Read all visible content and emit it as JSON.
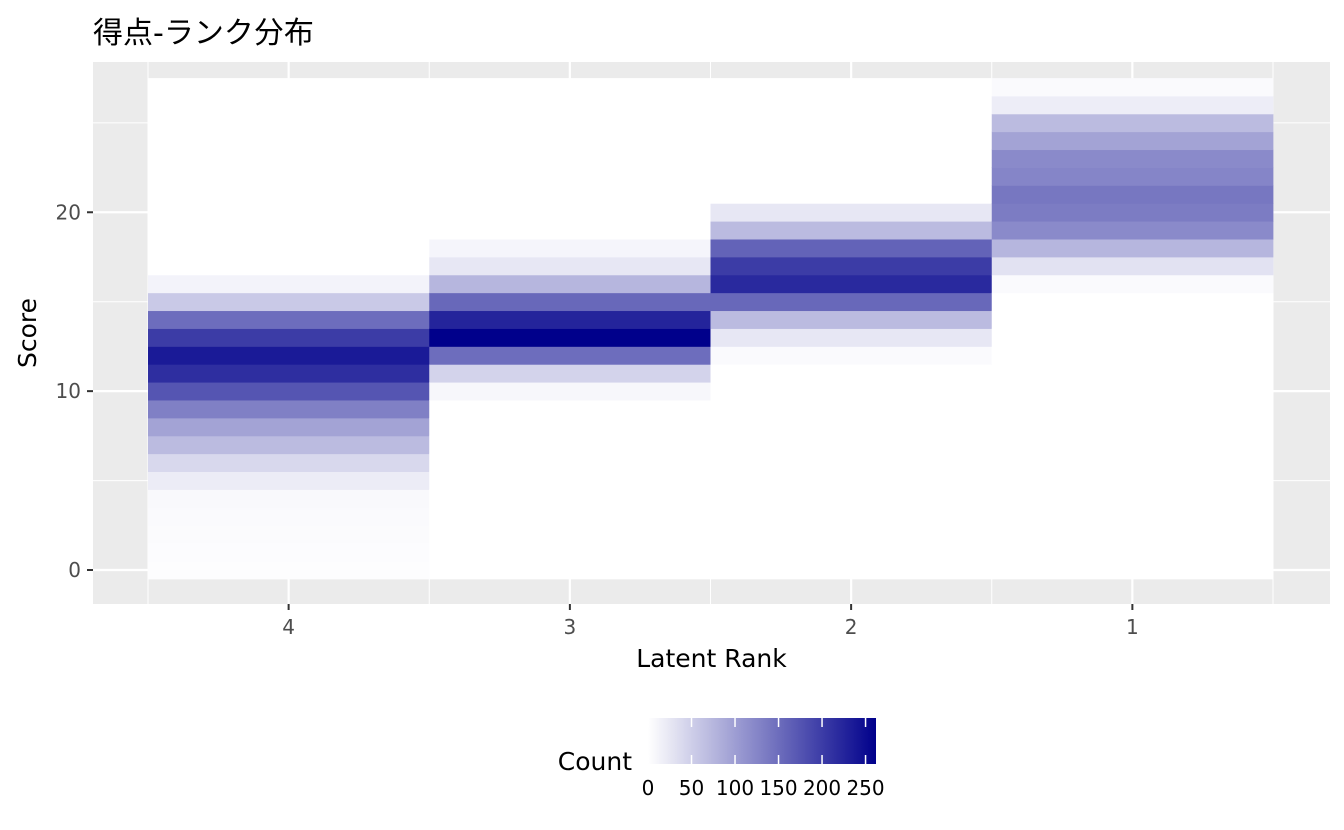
{
  "chart_data": {
    "type": "heatmap",
    "title": "得点-ランク分布",
    "xlabel": "Latent Rank",
    "ylabel": "Score",
    "x_categories": [
      "4",
      "3",
      "2",
      "1"
    ],
    "y_ticks": [
      0,
      10,
      20
    ],
    "ylim": [
      -1.9,
      28.4
    ],
    "legend": {
      "title": "Count",
      "position": "bottom",
      "min": 0,
      "max": 262,
      "ticks": [
        0,
        50,
        100,
        150,
        200,
        250
      ],
      "low_color": "#ffffff",
      "high_color": "#00008b"
    },
    "panel_color": "#ebebeb",
    "gridline_color": "#ffffff",
    "grid": true,
    "cells": [
      {
        "rank": "4",
        "counts": [
          2,
          3,
          4,
          5,
          6,
          20,
          40,
          70,
          95,
          130,
          175,
          215,
          235,
          200,
          150,
          55,
          12,
          0,
          0,
          0,
          0,
          0,
          0,
          0,
          0,
          0,
          0,
          0
        ]
      },
      {
        "rank": "3",
        "counts": [
          0,
          0,
          0,
          0,
          0,
          0,
          0,
          0,
          0,
          0,
          8,
          45,
          150,
          262,
          225,
          155,
          75,
          25,
          10,
          0,
          0,
          0,
          0,
          0,
          0,
          0,
          0,
          0
        ]
      },
      {
        "rank": "2",
        "counts": [
          0,
          0,
          0,
          0,
          0,
          0,
          0,
          0,
          0,
          0,
          0,
          0,
          5,
          25,
          70,
          155,
          220,
          200,
          160,
          70,
          25,
          0,
          0,
          0,
          0,
          0,
          0,
          0
        ]
      },
      {
        "rank": "1",
        "counts": [
          0,
          0,
          0,
          0,
          0,
          0,
          0,
          0,
          0,
          0,
          0,
          0,
          0,
          0,
          0,
          0,
          5,
          30,
          75,
          120,
          135,
          140,
          125,
          120,
          95,
          70,
          18,
          5
        ]
      }
    ]
  }
}
